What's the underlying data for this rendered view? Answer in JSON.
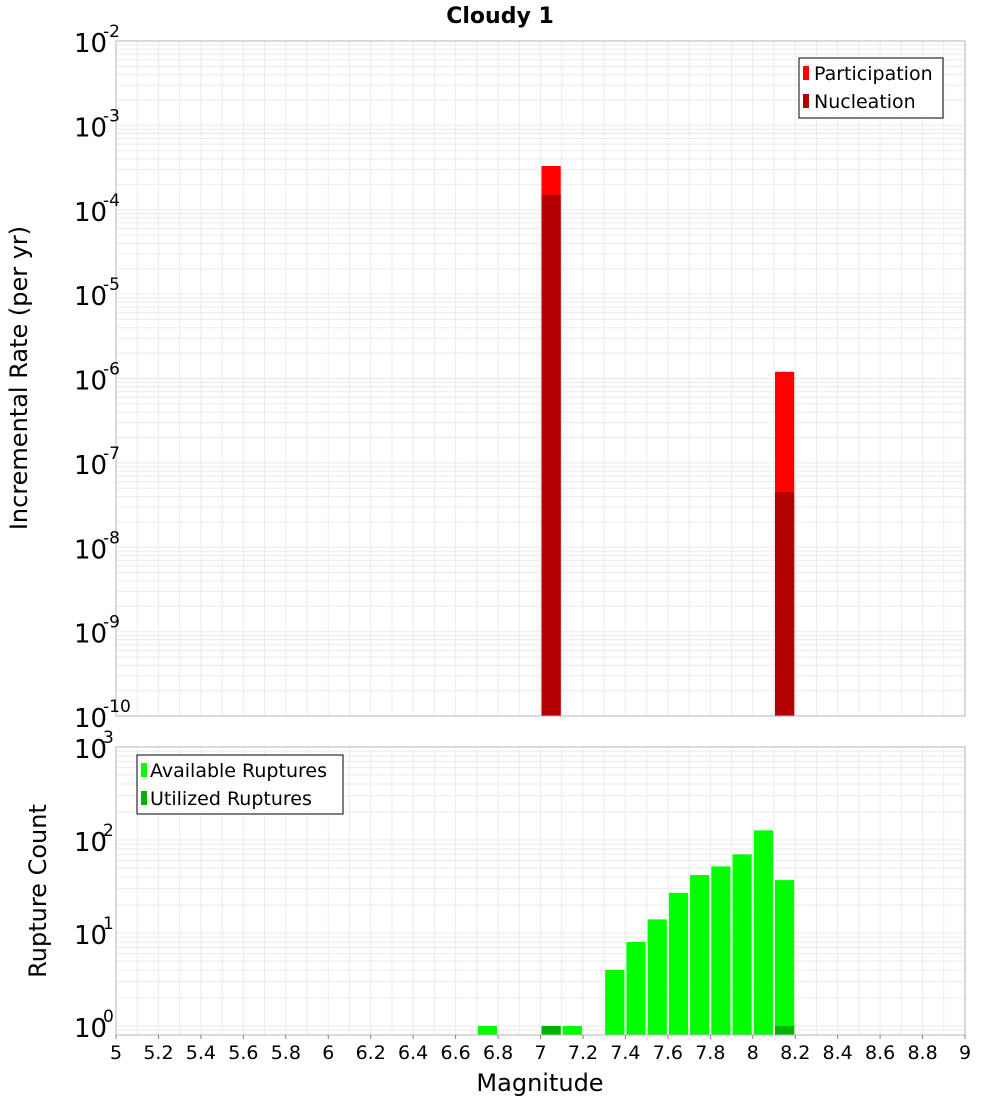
{
  "title": "Cloudy 1",
  "colors": {
    "participation": "#ff0000",
    "nucleation": "#b30000",
    "available": "#00ff00",
    "utilized": "#00b300",
    "grid": "#ebebeb",
    "frame": "#b4b4b4"
  },
  "chart_data": [
    {
      "type": "bar",
      "title": "Cloudy 1",
      "xlabel": "Magnitude",
      "ylabel": "Incremental Rate (per yr)",
      "y_scale": "log",
      "xlim": [
        5,
        9
      ],
      "ylim": [
        1e-10,
        0.01
      ],
      "y_ticks": [
        {
          "base": "10",
          "exp": "-10"
        },
        {
          "base": "10",
          "exp": "-9"
        },
        {
          "base": "10",
          "exp": "-8"
        },
        {
          "base": "10",
          "exp": "-7"
        },
        {
          "base": "10",
          "exp": "-6"
        },
        {
          "base": "10",
          "exp": "-5"
        },
        {
          "base": "10",
          "exp": "-4"
        },
        {
          "base": "10",
          "exp": "-3"
        },
        {
          "base": "10",
          "exp": "-2"
        }
      ],
      "bar_width": 0.1,
      "grid": true,
      "legend_position": "top-right",
      "series": [
        {
          "name": "Participation",
          "x": [
            7.05,
            8.15
          ],
          "values": [
            0.00033,
            1.2e-06
          ]
        },
        {
          "name": "Nucleation",
          "x": [
            7.05,
            8.15
          ],
          "values": [
            0.00015,
            4.5e-08
          ]
        }
      ]
    },
    {
      "type": "bar",
      "xlabel": "Magnitude",
      "ylabel": "Rupture Count",
      "y_scale": "log",
      "xlim": [
        5,
        9
      ],
      "ylim": [
        0.8,
        1000
      ],
      "y_ticks": [
        {
          "base": "10",
          "exp": "0"
        },
        {
          "base": "10",
          "exp": "1"
        },
        {
          "base": "10",
          "exp": "2"
        },
        {
          "base": "10",
          "exp": "3"
        }
      ],
      "x_ticks": [
        "5",
        "5.2",
        "5.4",
        "5.6",
        "5.8",
        "6",
        "6.2",
        "6.4",
        "6.6",
        "6.8",
        "7",
        "7.2",
        "7.4",
        "7.6",
        "7.8",
        "8",
        "8.2",
        "8.4",
        "8.6",
        "8.8",
        "9"
      ],
      "bar_width": 0.1,
      "grid": true,
      "legend_position": "top-left",
      "series": [
        {
          "name": "Available Ruptures",
          "x": [
            6.75,
            7.05,
            7.15,
            7.35,
            7.45,
            7.55,
            7.65,
            7.75,
            7.85,
            7.95,
            8.05,
            8.15
          ],
          "values": [
            1,
            1,
            1,
            4,
            8,
            14,
            27,
            42,
            52,
            70,
            127,
            37
          ]
        },
        {
          "name": "Utilized Ruptures",
          "x": [
            7.05,
            8.15
          ],
          "values": [
            1,
            1
          ]
        }
      ]
    }
  ]
}
